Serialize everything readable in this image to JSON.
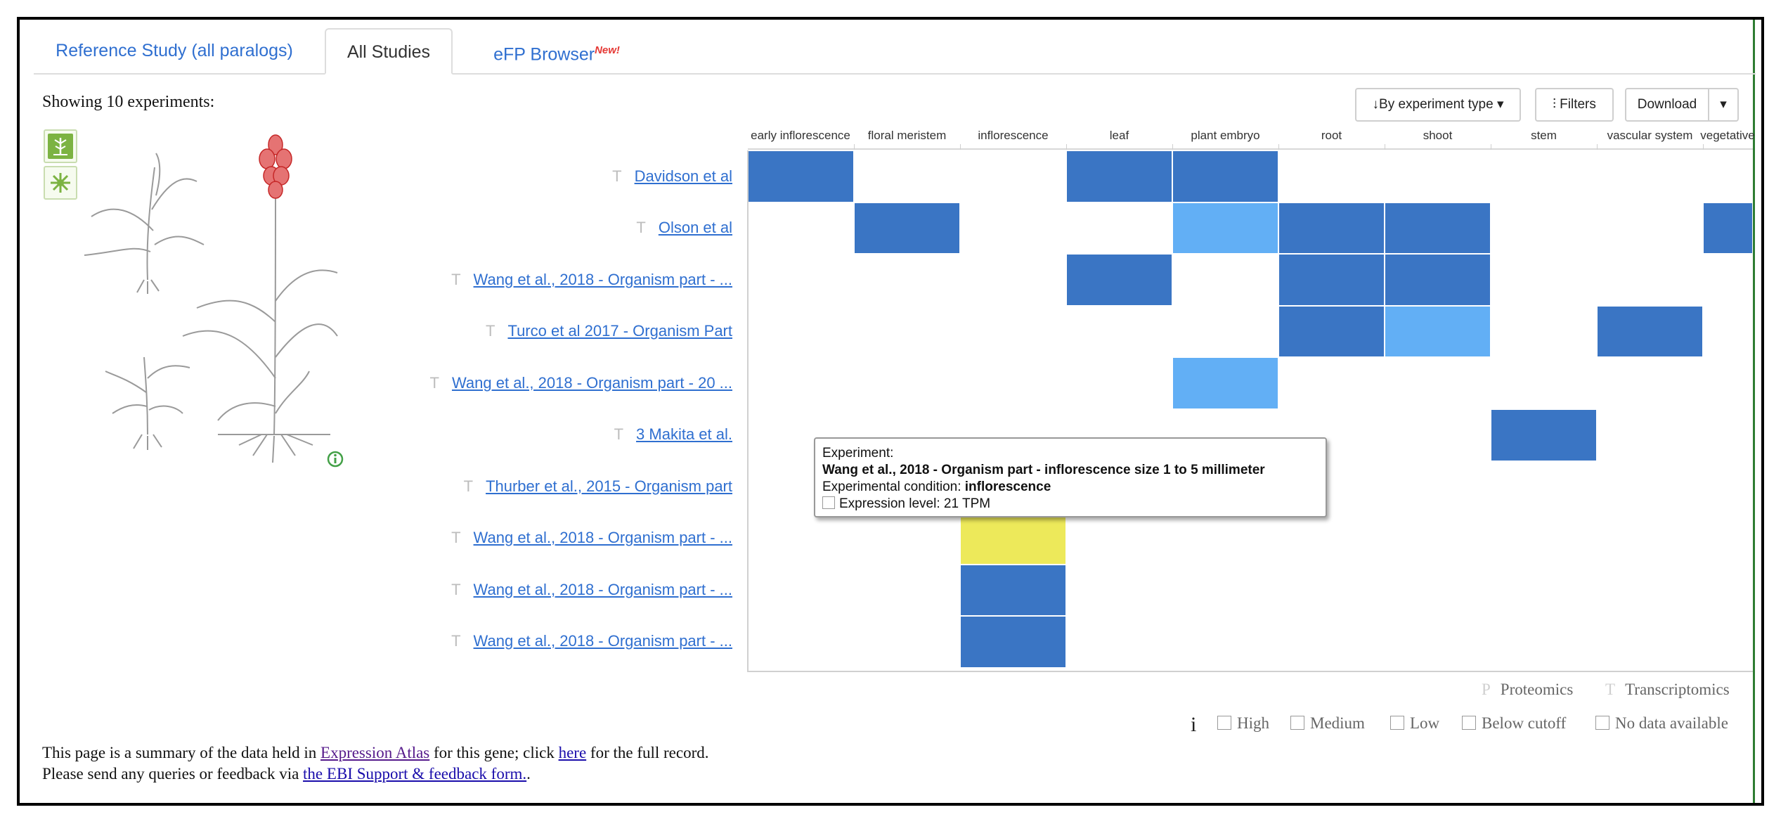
{
  "tabs": [
    {
      "label": "Reference Study (all paralogs)"
    },
    {
      "label": "All Studies"
    },
    {
      "label": "eFP Browser",
      "badge": "New!"
    }
  ],
  "showing_text": "Showing 10 experiments:",
  "controls": {
    "sort_label": "By experiment type",
    "filters_label": "Filters",
    "download_label": "Download"
  },
  "columns": [
    "early inflorescence",
    "floral meristem",
    "inflorescence",
    "leaf",
    "plant embryo",
    "root",
    "shoot",
    "stem",
    "vascular system",
    "vegetative"
  ],
  "experiments": [
    {
      "type": "T",
      "name": "Davidson et al"
    },
    {
      "type": "T",
      "name": "Olson et al"
    },
    {
      "type": "T",
      "name": "Wang et al., 2018 - Organism part - ..."
    },
    {
      "type": "T",
      "name": "Turco et al 2017 - Organism Part"
    },
    {
      "type": "T",
      "name": "Wang et al., 2018 - Organism part - 20 ..."
    },
    {
      "type": "T",
      "name": "3 Makita et al."
    },
    {
      "type": "T",
      "name": "Thurber et al., 2015 - Organism part"
    },
    {
      "type": "T",
      "name": "Wang et al., 2018 - Organism part - ..."
    },
    {
      "type": "T",
      "name": "Wang et al., 2018 - Organism part - ..."
    },
    {
      "type": "T",
      "name": "Wang et al., 2018 - Organism part - ..."
    }
  ],
  "heatmap": {
    "colors": {
      "High": "#3a75c4",
      "Medium": "#62aff5",
      "Highlight": "#ede95a"
    },
    "cells": [
      {
        "row": 0,
        "col": 0,
        "level": "High"
      },
      {
        "row": 0,
        "col": 3,
        "level": "High"
      },
      {
        "row": 0,
        "col": 4,
        "level": "High"
      },
      {
        "row": 1,
        "col": 1,
        "level": "High"
      },
      {
        "row": 1,
        "col": 4,
        "level": "Medium"
      },
      {
        "row": 1,
        "col": 5,
        "level": "High"
      },
      {
        "row": 1,
        "col": 6,
        "level": "High"
      },
      {
        "row": 1,
        "col": 9,
        "level": "High"
      },
      {
        "row": 2,
        "col": 3,
        "level": "High"
      },
      {
        "row": 2,
        "col": 5,
        "level": "High"
      },
      {
        "row": 2,
        "col": 6,
        "level": "High"
      },
      {
        "row": 3,
        "col": 5,
        "level": "High"
      },
      {
        "row": 3,
        "col": 6,
        "level": "Medium"
      },
      {
        "row": 3,
        "col": 8,
        "level": "High"
      },
      {
        "row": 4,
        "col": 4,
        "level": "Medium"
      },
      {
        "row": 5,
        "col": 7,
        "level": "High"
      },
      {
        "row": 7,
        "col": 2,
        "level": "Highlight"
      },
      {
        "row": 8,
        "col": 2,
        "level": "High"
      },
      {
        "row": 9,
        "col": 2,
        "level": "High"
      }
    ]
  },
  "tooltip": {
    "title": "Experiment:",
    "experiment": "Wang et al., 2018 - Organism part - inflorescence size 1 to 5 millimeter",
    "condition_label": "Experimental condition:",
    "condition_value": "inflorescence",
    "expression_label": "Expression level:",
    "expression_value": "21 TPM"
  },
  "legend": {
    "proteomics_mark": "P",
    "proteomics_label": "Proteomics",
    "transcriptomics_mark": "T",
    "transcriptomics_label": "Transcriptomics",
    "info_mark": "i",
    "levels": [
      "High",
      "Medium",
      "Low",
      "Below cutoff",
      "No data available"
    ]
  },
  "footer": {
    "line1_a": "This page is a summary of the data held in ",
    "line1_link1": "Expression Atlas",
    "line1_b": " for this gene; click ",
    "line1_link2": "here",
    "line1_c": " for the full record.",
    "line2_a": "Please send any queries or feedback via ",
    "line2_link": "the EBI Support & feedback form.",
    "line2_b": "."
  }
}
